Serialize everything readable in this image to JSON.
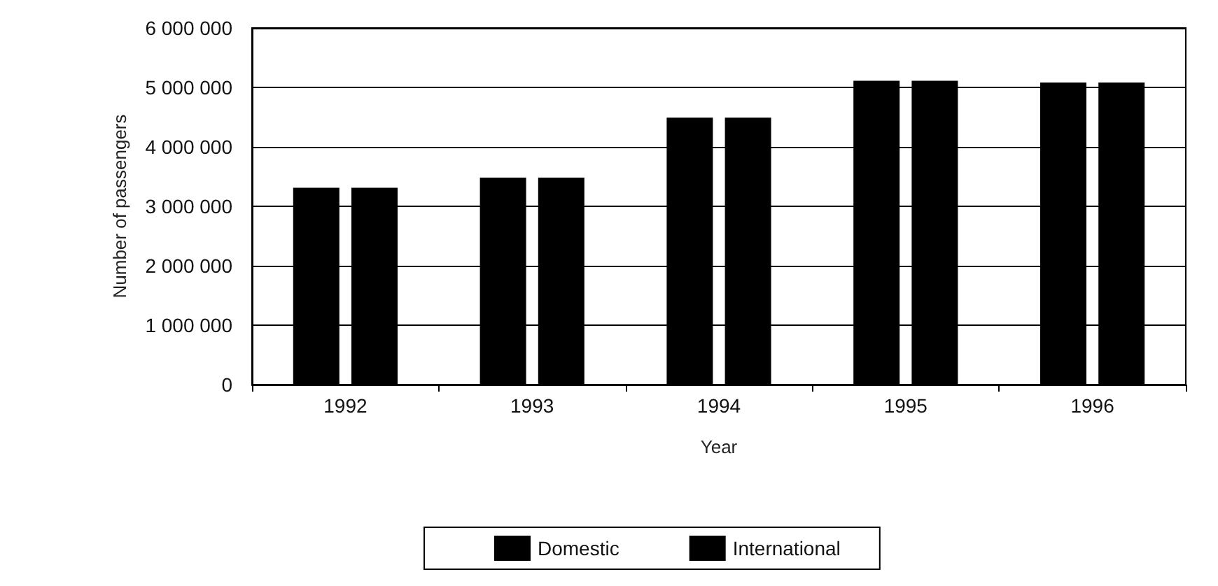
{
  "chart_data": {
    "type": "bar",
    "xlabel": "Year",
    "ylabel": "Number of passengers",
    "categories": [
      "1992",
      "1993",
      "1994",
      "1995",
      "1996"
    ],
    "series": [
      {
        "name": "Domestic",
        "color": "#000000",
        "values": [
          3300000,
          3470000,
          4480000,
          5100000,
          5070000
        ]
      },
      {
        "name": "International",
        "color": "#000000",
        "values": [
          3300000,
          3470000,
          4480000,
          5100000,
          5070000
        ]
      }
    ],
    "ylim": [
      0,
      6000000
    ],
    "yticks": [
      0,
      1000000,
      2000000,
      3000000,
      4000000,
      5000000,
      6000000
    ],
    "grid": "y",
    "legend": "bottom"
  }
}
